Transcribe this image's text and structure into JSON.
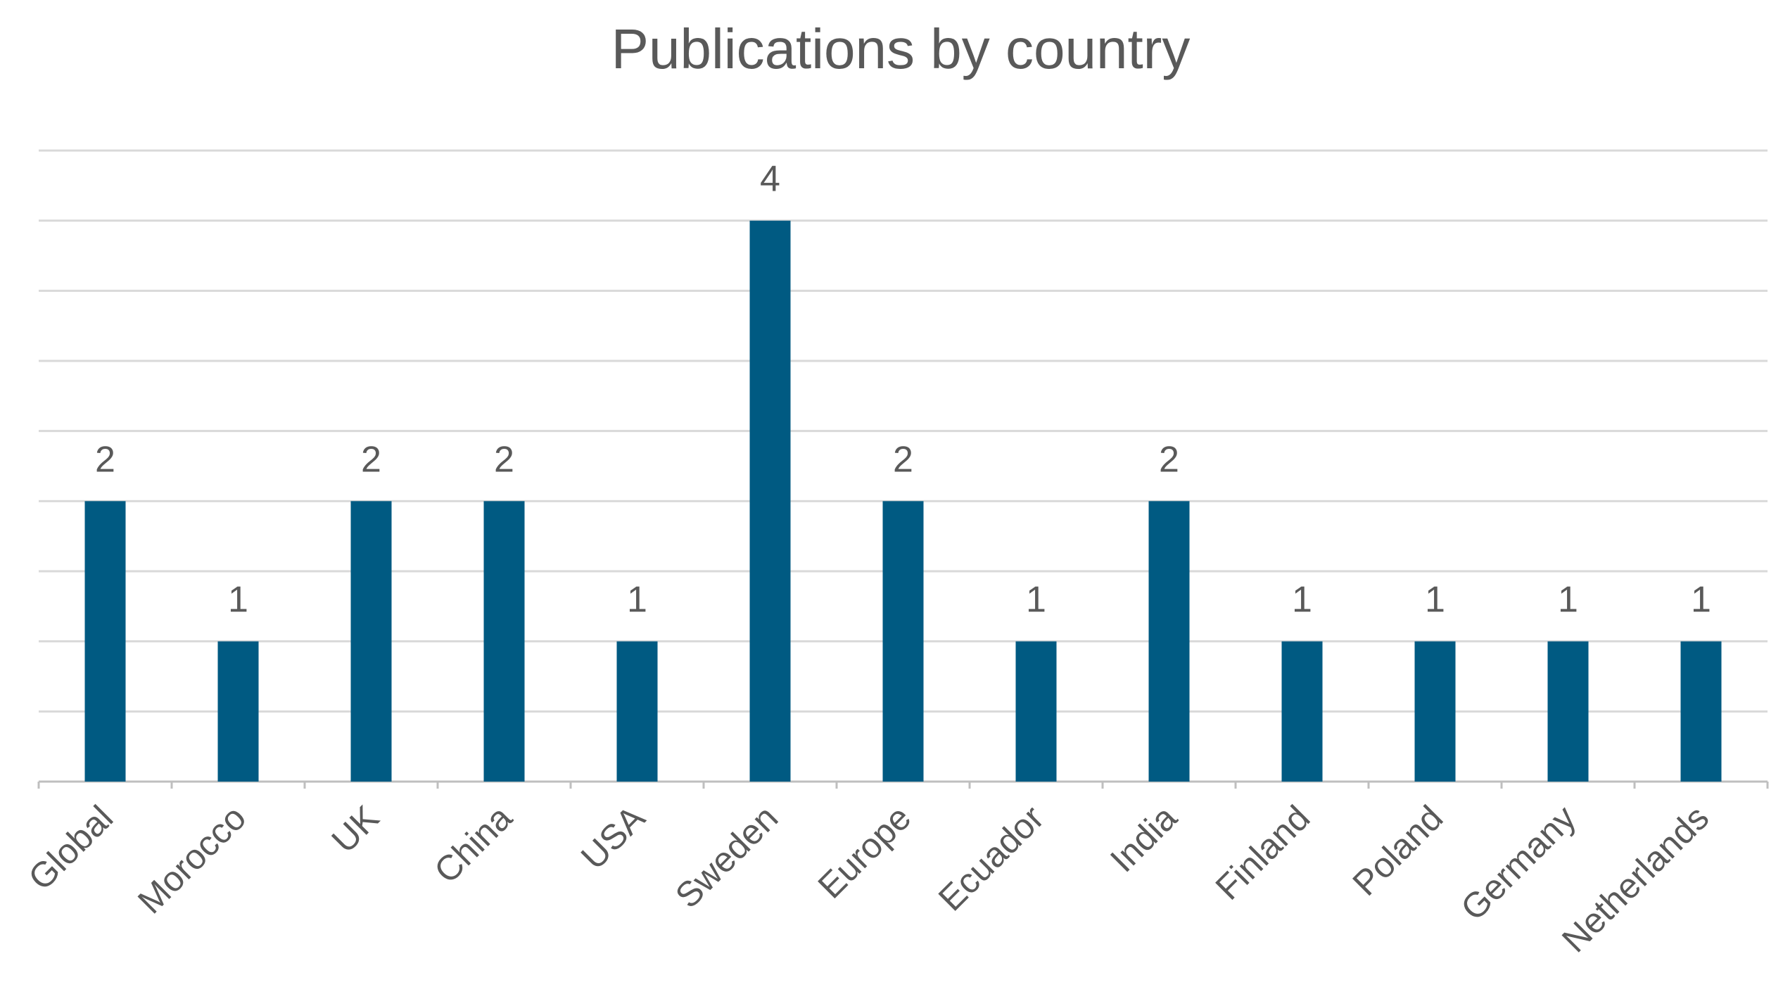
{
  "chart_data": {
    "type": "bar",
    "title": "Publications by country",
    "xlabel": "",
    "ylabel": "",
    "categories": [
      "Global",
      "Morocco",
      "UK",
      "China",
      "USA",
      "Sweden",
      "Europe",
      "Ecuador",
      "India",
      "Finland",
      "Poland",
      "Germany",
      "Netherlands"
    ],
    "series": [
      {
        "values": [
          2,
          1,
          2,
          2,
          1,
          4,
          2,
          1,
          2,
          1,
          1,
          1,
          1
        ]
      }
    ],
    "ylim": [
      0,
      4.5
    ],
    "gridlines": true,
    "gridline_step": 0.5,
    "y_tick_labels_shown": false,
    "data_labels_shown": true,
    "legend": "none",
    "colors": {
      "bar": "#005A82",
      "text": "#595959",
      "grid": "#D9D9D9",
      "axis": "#BFBFBF",
      "title": "#595959"
    }
  }
}
